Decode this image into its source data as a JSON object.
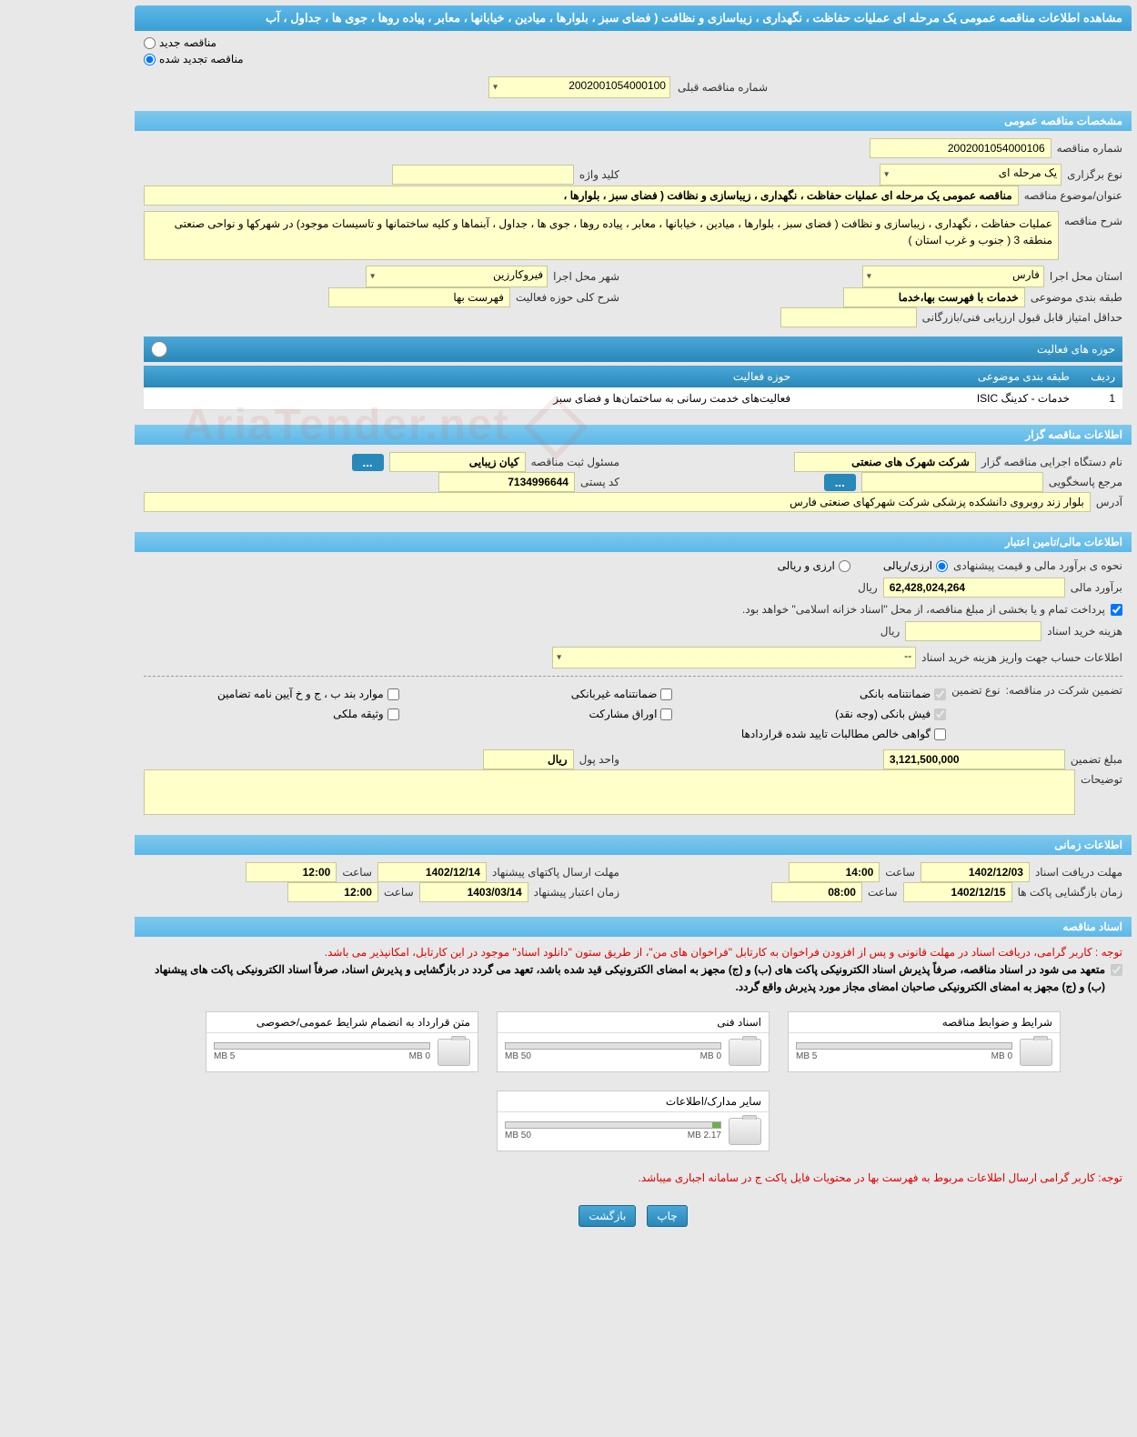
{
  "header": {
    "title": "مشاهده اطلاعات مناقصه عمومی یک مرحله ای عملیات حفاظت ، نگهداری ، زیباسازی و نظافت ( فضای سبز ، بلوارها ، میادین ، خیابانها ، معابر ، پیاده روها ، جوی ها ، جداول ، آب"
  },
  "radio_top": {
    "new_tender": "مناقصه جدید",
    "renewed_tender": "مناقصه تجدید شده",
    "prev_number_label": "شماره مناقصه قبلی",
    "prev_number_value": "2002001054000100"
  },
  "sections": {
    "general_specs": "مشخصات مناقصه عمومی",
    "tender_org": "اطلاعات مناقصه گزار",
    "financial": "اطلاعات مالی/تامین اعتبار",
    "timing": "اطلاعات زمانی",
    "docs": "اسناد مناقصه"
  },
  "general": {
    "tender_number_label": "شماره مناقصه",
    "tender_number": "2002001054000106",
    "holding_type_label": "نوع برگزاری",
    "holding_type": "یک مرحله ای",
    "keyword_label": "کلید واژه",
    "keyword": "",
    "subject_label": "عنوان/موضوع مناقصه",
    "subject": "مناقصه عمومی یک مرحله ای عملیات حفاظت ، نگهداری ، زیباسازی و نظافت ( فضای سبز ، بلوارها ،",
    "description_label": "شرح مناقصه",
    "description": "عملیات حفاظت ، نگهداری ، زیباسازی و نظافت ( فضای سبز ، بلوارها ، میادین ، خیابانها ، معابر ، پیاده روها ، جوی ها ، جداول ، آبنماها و کلیه ساختمانها و تاسیسات موجود) در شهرکها و نواحی صنعتی منطقه 3 ( جنوب و غرب استان )",
    "province_label": "استان محل اجرا",
    "province": "فارس",
    "city_label": "شهر محل اجرا",
    "city": "فیروکارزین",
    "category_label": "طبقه بندی موضوعی",
    "category": "خدمات با فهرست بها،خدما",
    "activity_scope_label": "شرح کلی حوزه فعالیت",
    "activity_scope": "فهرست بها",
    "min_score_label": "حداقل امتیاز قابل قبول ارزیابی فنی/بازرگانی",
    "min_score": ""
  },
  "activity_table": {
    "title": "حوزه های فعالیت",
    "col_row": "ردیف",
    "col_category": "طبقه بندی موضوعی",
    "col_field": "حوزه فعالیت",
    "rows": [
      {
        "n": "1",
        "cat": "خدمات - کدینگ ISIC",
        "field": "فعالیت‌های خدمت رسانی به ساختمان‌ها و فضای سبز"
      }
    ]
  },
  "org": {
    "exec_label": "نام دستگاه اجرایی مناقصه گزار",
    "exec": "شرکت شهرک های صنعتی",
    "reg_officer_label": "مسئول ثبت مناقصه",
    "reg_officer": "کیان زیبایی",
    "respond_label": "مرجع پاسخگویی",
    "respond": "",
    "postal_label": "کد پستی",
    "postal": "7134996644",
    "address_label": "آدرس",
    "address": "بلوار زند روبروی دانشکده پزشکی شرکت شهرکهای صنعتی فارس"
  },
  "financial": {
    "estimate_method_label": "نحوه ی برآورد مالی و قیمت پیشنهادی",
    "opt_fx_rial": "ارزی/ریالی",
    "opt_fx_and_rial": "ارزی و ریالی",
    "estimate_label": "برآورد مالی",
    "estimate": "62,428,024,264",
    "rial": "ریال",
    "treasury_note": "پرداخت تمام و یا بخشی از مبلغ مناقصه، از محل \"اسناد خزانه اسلامی\" خواهد بود.",
    "doc_cost_label": "هزینه خرید اسناد",
    "doc_cost": "",
    "deposit_info_label": "اطلاعات حساب جهت واریز هزینه خرید اسناد",
    "deposit_info": "--",
    "guarantee_label": "تضمین شرکت در مناقصه:",
    "guarantee_type_label": "نوع تضمین",
    "chk_bank_guarantee": "ضمانتنامه بانکی",
    "chk_nonbank_guarantee": "ضمانتنامه غیربانکی",
    "chk_bond_cases": "موارد بند ب ، ج و خ آیین نامه تضامین",
    "chk_bank_receipt": "فیش بانکی (وجه نقد)",
    "chk_participation": "اوراق مشارکت",
    "chk_property": "وثیقه ملکی",
    "chk_net_claims": "گواهی خالص مطالبات تایید شده قراردادها",
    "guarantee_amount_label": "مبلغ تضمین",
    "guarantee_amount": "3,121,500,000",
    "unit_label": "واحد پول",
    "unit": "ریال",
    "remarks_label": "توضیحات",
    "remarks": ""
  },
  "timing": {
    "receive_deadline_label": "مهلت دریافت اسناد",
    "receive_date": "1402/12/03",
    "receive_time_label": "ساعت",
    "receive_time": "14:00",
    "send_deadline_label": "مهلت ارسال پاکتهای پیشنهاد",
    "send_date": "1402/12/14",
    "send_time_label": "ساعت",
    "send_time": "12:00",
    "open_label": "زمان بازگشایی پاکت ها",
    "open_date": "1402/12/15",
    "open_time_label": "ساعت",
    "open_time": "08:00",
    "validity_label": "زمان اعتبار پیشنهاد",
    "validity_date": "1403/03/14",
    "validity_time_label": "ساعت",
    "validity_time": "12:00"
  },
  "docs": {
    "note1": "توجه : کاربر گرامی، دریافت اسناد در مهلت قانونی و پس از افزودن فراخوان به کارتابل \"فراخوان های من\"، از طریق ستون \"دانلود اسناد\" موجود در این کارتابل، امکانپذیر می باشد.",
    "note2": "متعهد می شود در اسناد مناقصه، صرفاً پذیرش اسناد الکترونیکی پاکت های (ب) و (ج) مجهز به امضای الکترونیکی قید شده باشد، تعهد می گردد در بازگشایی و پذیرش اسناد، صرفاً اسناد الکترونیکی پاکت های پیشنهاد (ب) و (ج) مجهز به امضای الکترونیکی صاحبان امضای مجاز مورد پذیرش واقع گردد.",
    "note3": "توجه: کاربر گرامی ارسال اطلاعات مربوط به فهرست بها در محتویات فایل پاکت ج در سامانه اجباری میباشد.",
    "files": [
      {
        "title": "شرایط و ضوابط مناقصه",
        "used": "0 MB",
        "max": "5 MB",
        "pct": 0
      },
      {
        "title": "اسناد فنی",
        "used": "0 MB",
        "max": "50 MB",
        "pct": 0
      },
      {
        "title": "متن قرارداد به انضمام شرایط عمومی/خصوصی",
        "used": "0 MB",
        "max": "5 MB",
        "pct": 0
      },
      {
        "title": "سایر مدارک/اطلاعات",
        "used": "2.17 MB",
        "max": "50 MB",
        "pct": 4
      }
    ]
  },
  "buttons": {
    "print": "چاپ",
    "back": "بازگشت",
    "ellipsis": "..."
  },
  "watermark": "AriaTender.net",
  "colors": {
    "header_grad_top": "#5db8e8",
    "header_grad_bot": "#3a9fd4",
    "field_bg": "#feffc9",
    "red": "#d00"
  }
}
